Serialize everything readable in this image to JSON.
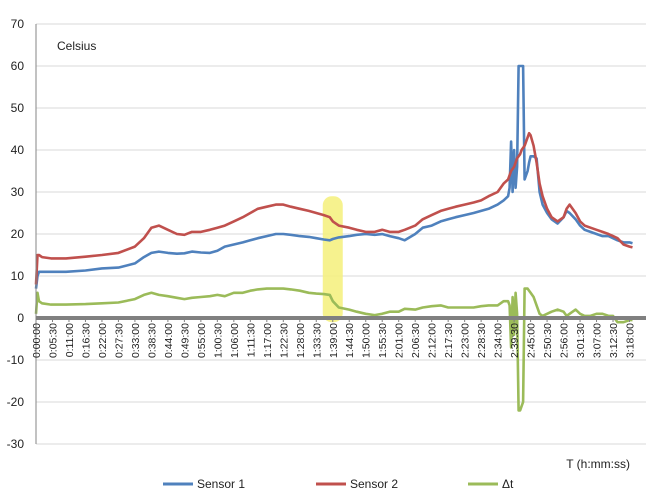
{
  "chart_data": {
    "type": "line",
    "unit_label": "Celsius",
    "xlabel": "T (h:mm:ss)",
    "ylim": [
      -30,
      70
    ],
    "y_ticks": [
      -30,
      -20,
      -10,
      0,
      10,
      20,
      30,
      40,
      50,
      60,
      70
    ],
    "x_tick_labels": [
      "0:00:00",
      "0:05:30",
      "0:11:00",
      "0:16:30",
      "0:22:00",
      "0:27:30",
      "0:33:00",
      "0:38:30",
      "0:44:00",
      "0:49:30",
      "0:55:00",
      "1:00:30",
      "1:06:00",
      "1:11:30",
      "1:17:00",
      "1:22:30",
      "1:28:00",
      "1:33:30",
      "1:39:00",
      "1:44:30",
      "1:50:00",
      "1:55:30",
      "2:01:00",
      "2:06:30",
      "2:12:00",
      "2:17:30",
      "2:23:00",
      "2:28:30",
      "2:34:00",
      "2:39:30",
      "2:45:00",
      "2:50:30",
      "2:56:00",
      "3:01:30",
      "3:07:00",
      "3:12:30",
      "3:18:00"
    ],
    "x_min_seconds": 0,
    "x_max_seconds": 12210,
    "grid": true,
    "legend_position": "bottom",
    "highlight": {
      "label": "1:39:00",
      "color": "#f5f07a"
    },
    "series": [
      {
        "name": "Sensor 1",
        "color": "#4f81bd",
        "x": [
          "0:00:00",
          "0:00:30",
          "0:01:00",
          "0:02:00",
          "0:05:00",
          "0:10:00",
          "0:16:30",
          "0:22:00",
          "0:27:30",
          "0:33:00",
          "0:36:00",
          "0:38:30",
          "0:41:00",
          "0:44:00",
          "0:47:00",
          "0:49:30",
          "0:52:00",
          "0:55:00",
          "0:58:00",
          "1:00:30",
          "1:03:00",
          "1:06:00",
          "1:09:00",
          "1:11:30",
          "1:14:00",
          "1:17:00",
          "1:20:00",
          "1:22:30",
          "1:25:00",
          "1:28:00",
          "1:31:00",
          "1:33:30",
          "1:36:00",
          "1:38:00",
          "1:39:00",
          "1:41:00",
          "1:44:30",
          "1:47:00",
          "1:50:00",
          "1:53:00",
          "1:55:30",
          "1:58:00",
          "2:01:00",
          "2:03:00",
          "2:06:30",
          "2:09:00",
          "2:12:00",
          "2:15:00",
          "2:17:30",
          "2:20:00",
          "2:23:00",
          "2:26:00",
          "2:28:30",
          "2:31:00",
          "2:34:00",
          "2:36:00",
          "2:37:30",
          "2:38:00",
          "2:38:30",
          "2:39:00",
          "2:39:30",
          "2:40:00",
          "2:40:30",
          "2:41:00",
          "2:41:30",
          "2:42:00",
          "2:42:30",
          "2:43:00",
          "2:44:00",
          "2:44:30",
          "2:45:00",
          "2:46:00",
          "2:47:00",
          "2:48:00",
          "2:49:00",
          "2:50:30",
          "2:52:00",
          "2:54:00",
          "2:56:00",
          "2:57:00",
          "2:58:00",
          "3:00:00",
          "3:01:30",
          "3:03:00",
          "3:05:00",
          "3:07:00",
          "3:09:00",
          "3:11:00",
          "3:12:30",
          "3:14:00",
          "3:16:00",
          "3:18:00",
          "3:19:00"
        ],
        "y": [
          7,
          10,
          11,
          11,
          11,
          11,
          11.3,
          11.8,
          12,
          13,
          14.5,
          15.5,
          15.8,
          15.5,
          15.3,
          15.4,
          15.8,
          15.6,
          15.5,
          16,
          17,
          17.5,
          18,
          18.5,
          19,
          19.5,
          20,
          20,
          19.8,
          19.5,
          19.3,
          19,
          18.7,
          18.5,
          18.8,
          19.2,
          19.5,
          19.8,
          20,
          19.8,
          20,
          19.5,
          19,
          18.5,
          20,
          21.5,
          22,
          23,
          23.5,
          24,
          24.5,
          25,
          25.5,
          26,
          27,
          28,
          29,
          31,
          42,
          30,
          40,
          31,
          36,
          60,
          60,
          60,
          60,
          33,
          35,
          37,
          38.5,
          38.5,
          38,
          30,
          27,
          25,
          23.5,
          22.5,
          24,
          25.5,
          25,
          23.5,
          22,
          21,
          20.5,
          20,
          19.5,
          19.5,
          19,
          18.5,
          18,
          18,
          17.8
        ]
      },
      {
        "name": "Sensor 2",
        "color": "#c0504d",
        "x": [
          "0:00:00",
          "0:00:30",
          "0:01:00",
          "0:02:00",
          "0:05:00",
          "0:10:00",
          "0:16:30",
          "0:22:00",
          "0:27:30",
          "0:33:00",
          "0:36:00",
          "0:38:30",
          "0:41:00",
          "0:44:00",
          "0:47:00",
          "0:49:30",
          "0:52:00",
          "0:55:00",
          "0:58:00",
          "1:00:30",
          "1:03:00",
          "1:06:00",
          "1:09:00",
          "1:11:30",
          "1:14:00",
          "1:17:00",
          "1:20:00",
          "1:22:30",
          "1:25:00",
          "1:28:00",
          "1:31:00",
          "1:33:30",
          "1:36:00",
          "1:38:00",
          "1:39:00",
          "1:41:00",
          "1:44:30",
          "1:47:00",
          "1:50:00",
          "1:53:00",
          "1:55:30",
          "1:58:00",
          "2:01:00",
          "2:03:00",
          "2:06:30",
          "2:09:00",
          "2:12:00",
          "2:15:00",
          "2:17:30",
          "2:20:00",
          "2:23:00",
          "2:26:00",
          "2:28:30",
          "2:31:00",
          "2:34:00",
          "2:36:00",
          "2:37:30",
          "2:38:00",
          "2:38:30",
          "2:39:00",
          "2:39:30",
          "2:40:00",
          "2:40:30",
          "2:41:00",
          "2:41:30",
          "2:42:00",
          "2:42:30",
          "2:43:00",
          "2:44:00",
          "2:44:30",
          "2:45:00",
          "2:46:00",
          "2:47:00",
          "2:48:00",
          "2:49:00",
          "2:50:30",
          "2:52:00",
          "2:54:00",
          "2:56:00",
          "2:57:00",
          "2:58:00",
          "3:00:00",
          "3:01:30",
          "3:03:00",
          "3:05:00",
          "3:07:00",
          "3:09:00",
          "3:11:00",
          "3:12:30",
          "3:14:00",
          "3:16:00",
          "3:18:00",
          "3:19:00"
        ],
        "y": [
          8,
          15,
          15,
          14.5,
          14.2,
          14.2,
          14.6,
          15,
          15.5,
          17,
          19,
          21.5,
          22,
          21,
          20,
          19.8,
          20.5,
          20.5,
          21,
          21.5,
          22,
          23,
          24,
          25,
          26,
          26.5,
          27,
          27,
          26.5,
          26,
          25.5,
          25,
          24.5,
          24,
          23,
          22,
          21.5,
          21,
          20.5,
          20.5,
          21,
          20.5,
          20.5,
          21,
          22,
          23.5,
          24.5,
          25.5,
          26,
          26.5,
          27,
          27.5,
          28,
          29,
          30,
          32,
          33,
          34,
          35,
          35.5,
          36,
          37,
          38,
          38.5,
          39,
          40,
          40.5,
          41,
          43,
          44,
          43.5,
          41,
          37,
          32,
          29,
          26,
          24,
          23,
          24,
          26,
          27,
          25,
          23,
          22,
          21.5,
          21,
          20.5,
          20,
          19.5,
          19,
          17.5,
          17,
          16.8
        ]
      },
      {
        "name": "Δt",
        "color": "#9bbb59",
        "x": [
          "0:00:00",
          "0:00:30",
          "0:01:00",
          "0:02:00",
          "0:05:00",
          "0:10:00",
          "0:16:30",
          "0:22:00",
          "0:27:30",
          "0:33:00",
          "0:36:00",
          "0:38:30",
          "0:41:00",
          "0:44:00",
          "0:47:00",
          "0:49:30",
          "0:52:00",
          "0:55:00",
          "0:58:00",
          "1:00:30",
          "1:03:00",
          "1:06:00",
          "1:09:00",
          "1:11:30",
          "1:14:00",
          "1:17:00",
          "1:20:00",
          "1:22:30",
          "1:25:00",
          "1:28:00",
          "1:31:00",
          "1:33:30",
          "1:36:00",
          "1:38:00",
          "1:39:00",
          "1:41:00",
          "1:44:30",
          "1:47:00",
          "1:50:00",
          "1:53:00",
          "1:55:30",
          "1:58:00",
          "2:01:00",
          "2:03:00",
          "2:06:30",
          "2:09:00",
          "2:12:00",
          "2:15:00",
          "2:17:30",
          "2:20:00",
          "2:23:00",
          "2:26:00",
          "2:28:30",
          "2:31:00",
          "2:34:00",
          "2:36:00",
          "2:37:30",
          "2:38:00",
          "2:38:30",
          "2:39:00",
          "2:39:30",
          "2:40:00",
          "2:40:30",
          "2:41:00",
          "2:41:30",
          "2:42:00",
          "2:42:30",
          "2:43:00",
          "2:44:00",
          "2:44:30",
          "2:45:00",
          "2:46:00",
          "2:47:00",
          "2:48:00",
          "2:49:00",
          "2:50:30",
          "2:52:00",
          "2:54:00",
          "2:56:00",
          "2:57:00",
          "2:58:00",
          "3:00:00",
          "3:01:30",
          "3:03:00",
          "3:05:00",
          "3:07:00",
          "3:09:00",
          "3:11:00",
          "3:12:30",
          "3:14:00",
          "3:16:00",
          "3:18:00",
          "3:19:00"
        ],
        "y": [
          1,
          6,
          4,
          3.5,
          3.2,
          3.2,
          3.3,
          3.5,
          3.7,
          4.5,
          5.5,
          6,
          5.5,
          5.2,
          4.8,
          4.5,
          4.8,
          5,
          5.2,
          5.5,
          5.2,
          6,
          6,
          6.5,
          6.8,
          7,
          7,
          7,
          6.8,
          6.5,
          6,
          5.8,
          5.7,
          5.5,
          4,
          2.5,
          2,
          1.5,
          1,
          0.7,
          1,
          1.5,
          1.5,
          2.2,
          2,
          2.5,
          2.8,
          3,
          2.5,
          2.5,
          2.5,
          2.5,
          2.8,
          3,
          3,
          4,
          4,
          3,
          -7,
          5,
          -4,
          6,
          1,
          -22,
          -22,
          -21,
          -20,
          7,
          7,
          6.5,
          6,
          5,
          3,
          1,
          0.5,
          1,
          1.5,
          2,
          1.5,
          0.5,
          1,
          2,
          1,
          0.5,
          0.5,
          1,
          1,
          0.5,
          0.5,
          -1,
          -1,
          -0.5,
          -0.5
        ]
      }
    ]
  }
}
